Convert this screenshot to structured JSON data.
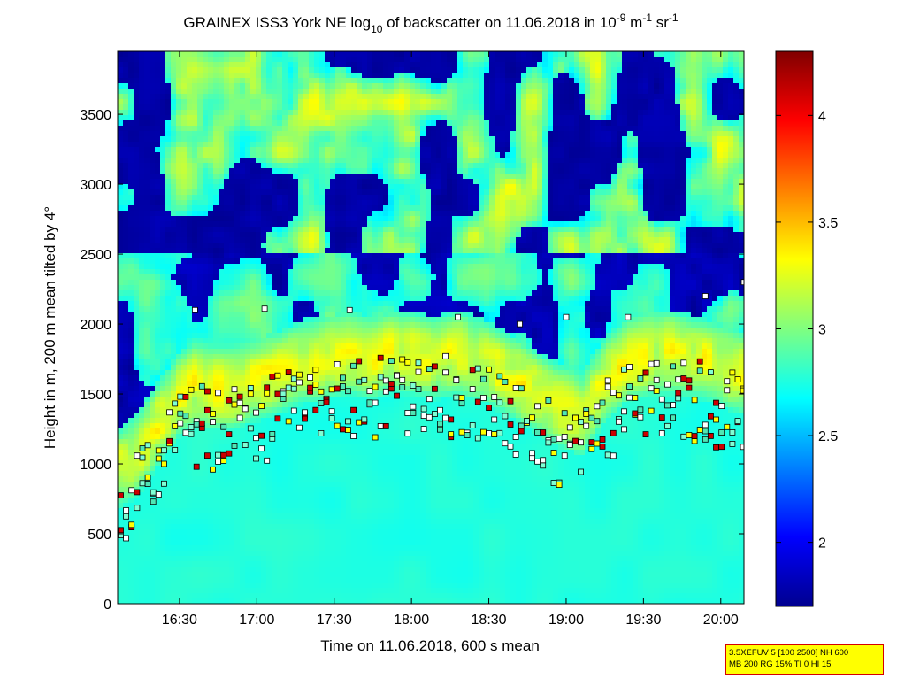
{
  "chart_data": {
    "type": "heatmap",
    "title": {
      "prefix": "GRAINEX ISS3 York NE log",
      "log_base": "10",
      "middle": " of backscatter on 11.06.2018 in 10",
      "exp1": "-9",
      "unit_m": " m",
      "exp2": "-1",
      "unit_sr": " sr",
      "exp3": "-1"
    },
    "xlabel": "Time on 11.06.2018, 600 s mean",
    "ylabel": "Height in m, 200 m mean tilted by 4°",
    "x_range_hours": [
      16.1,
      20.15
    ],
    "ylim": [
      0,
      3950
    ],
    "x_ticks": [
      {
        "label": "16:30",
        "value": 16.5
      },
      {
        "label": "17:00",
        "value": 17.0
      },
      {
        "label": "17:30",
        "value": 17.5
      },
      {
        "label": "18:00",
        "value": 18.0
      },
      {
        "label": "18:30",
        "value": 18.5
      },
      {
        "label": "19:00",
        "value": 19.0
      },
      {
        "label": "19:30",
        "value": 19.5
      },
      {
        "label": "20:00",
        "value": 20.0
      }
    ],
    "y_ticks": [
      {
        "label": "0",
        "value": 0
      },
      {
        "label": "500",
        "value": 500
      },
      {
        "label": "1000",
        "value": 1000
      },
      {
        "label": "1500",
        "value": 1500
      },
      {
        "label": "2000",
        "value": 2000
      },
      {
        "label": "2500",
        "value": 2500
      },
      {
        "label": "3000",
        "value": 3000
      },
      {
        "label": "3500",
        "value": 3500
      }
    ],
    "colorbar": {
      "range": [
        1.7,
        4.3
      ],
      "colormap": "jet",
      "ticks": [
        {
          "label": "2",
          "value": 2.0
        },
        {
          "label": "2.5",
          "value": 2.5
        },
        {
          "label": "3",
          "value": 3.0
        },
        {
          "label": "3.5",
          "value": 3.5
        },
        {
          "label": "4",
          "value": 4.0
        }
      ]
    },
    "boundary_layer_top_m": [
      [
        16.1,
        1100
      ],
      [
        16.25,
        1250
      ],
      [
        16.4,
        1500
      ],
      [
        16.5,
        1650
      ],
      [
        16.6,
        1720
      ],
      [
        16.7,
        1700
      ],
      [
        16.85,
        1700
      ],
      [
        17.0,
        1750
      ],
      [
        17.15,
        1800
      ],
      [
        17.3,
        1880
      ],
      [
        17.45,
        1900
      ],
      [
        17.6,
        1950
      ],
      [
        17.75,
        1900
      ],
      [
        17.9,
        1950
      ],
      [
        18.0,
        1950
      ],
      [
        18.15,
        1900
      ],
      [
        18.3,
        1950
      ],
      [
        18.45,
        1900
      ],
      [
        18.6,
        1800
      ],
      [
        18.75,
        1700
      ],
      [
        18.9,
        1600
      ],
      [
        19.0,
        1550
      ],
      [
        19.1,
        1500
      ],
      [
        19.25,
        1750
      ],
      [
        19.4,
        1900
      ],
      [
        19.55,
        1950
      ],
      [
        19.7,
        1950
      ],
      [
        19.85,
        1900
      ],
      [
        20.0,
        1850
      ],
      [
        20.15,
        1800
      ]
    ],
    "high_layer_m": [
      [
        16.6,
        2100
      ],
      [
        17.05,
        2110
      ],
      [
        17.6,
        2100
      ],
      [
        18.3,
        2050
      ],
      [
        18.7,
        2000
      ],
      [
        19.0,
        2050
      ],
      [
        19.4,
        2050
      ],
      [
        19.9,
        2200
      ],
      [
        20.15,
        2300
      ]
    ],
    "grid": false
  },
  "annotation": {
    "line1": "3.5XEFUV 5 [100 2500] NH 600",
    "line2": "MB 200 RG 15% TI 0 HI 15"
  }
}
